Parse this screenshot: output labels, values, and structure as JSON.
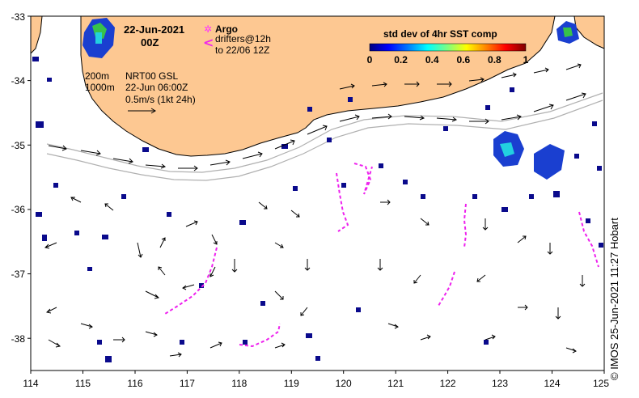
{
  "title": {
    "date": "22-Jun-2021",
    "time": "00Z"
  },
  "legend": {
    "argo_label": "Argo",
    "drifters_label": "drifters@12h",
    "drifters_label_2": "to 22/06 12Z",
    "argo_symbol": "✲",
    "drifter_symbol": "<",
    "argo_color": "#ff33ff",
    "drifter_color": "#ee22ee"
  },
  "colorbar": {
    "title": "std dev of 4hr SST comp",
    "ticks": [
      "0",
      "0.2",
      "0.4",
      "0.6",
      "0.8",
      "1"
    ],
    "colors": [
      "#00007f",
      "#0000ff",
      "#007fff",
      "#00ffff",
      "#7fff7f",
      "#ffff00",
      "#ff7f00",
      "#ff0000",
      "#7f0000"
    ]
  },
  "isobaths": {
    "shallow": "200m",
    "deep": "1000m"
  },
  "velocity": {
    "product": "NRT00 GSL",
    "time": "22-Jun 06:00Z",
    "scale": "0.5m/s (1kt 24h)"
  },
  "axes": {
    "x_ticks": [
      "114",
      "115",
      "116",
      "117",
      "118",
      "119",
      "120",
      "121",
      "122",
      "123",
      "124",
      "125"
    ],
    "y_ticks": [
      "-33",
      "-34",
      "-35",
      "-36",
      "-37",
      "-38"
    ],
    "xlim": [
      114,
      125
    ],
    "ylim": [
      -38.5,
      -33
    ]
  },
  "colors": {
    "land": "#fdc892",
    "coastline": "#000000",
    "isobath": "#b0b0b0",
    "low_sst_std": "#0a0a8c"
  },
  "credit": "©  IMOS 25-Jun-2021 11:27 Hobart"
}
